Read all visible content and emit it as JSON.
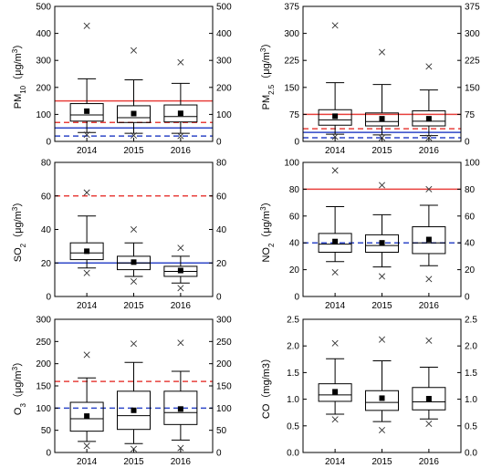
{
  "chart_data": [
    {
      "type": "box",
      "ylabel": "PM10（μg/m3）",
      "ylim": [
        0,
        500
      ],
      "yticks": [
        0,
        100,
        200,
        300,
        400,
        500
      ],
      "categories": [
        "2014",
        "2015",
        "2016"
      ],
      "boxes": [
        {
          "whisker_low": 33,
          "q1": 75,
          "median": 98,
          "q3": 140,
          "whisker_high": 232,
          "mean": 112,
          "outliers": [
            25,
            428
          ]
        },
        {
          "whisker_low": 30,
          "q1": 70,
          "median": 88,
          "q3": 132,
          "whisker_high": 228,
          "mean": 103,
          "outliers": [
            22,
            337
          ]
        },
        {
          "whisker_low": 30,
          "q1": 72,
          "median": 92,
          "q3": 135,
          "whisker_high": 215,
          "mean": 104,
          "outliers": [
            20,
            293
          ]
        }
      ],
      "reference_lines": [
        {
          "value": 150,
          "style": "solid",
          "color": "#e8413d"
        },
        {
          "value": 70,
          "style": "dashed",
          "color": "#e8413d"
        },
        {
          "value": 50,
          "style": "solid",
          "color": "#2f47c8"
        },
        {
          "value": 20,
          "style": "dashed",
          "color": "#2f47c8"
        }
      ]
    },
    {
      "type": "box",
      "ylabel": "PM2.5（μg/m3）",
      "ylim": [
        0,
        375
      ],
      "yticks": [
        0,
        75,
        150,
        225,
        300,
        375
      ],
      "categories": [
        "2014",
        "2015",
        "2016"
      ],
      "boxes": [
        {
          "whisker_low": 20,
          "q1": 45,
          "median": 60,
          "q3": 88,
          "whisker_high": 163,
          "mean": 70,
          "outliers": [
            13,
            322
          ]
        },
        {
          "whisker_low": 18,
          "q1": 43,
          "median": 55,
          "q3": 79,
          "whisker_high": 158,
          "mean": 63,
          "outliers": [
            10,
            248
          ]
        },
        {
          "whisker_low": 16,
          "q1": 43,
          "median": 56,
          "q3": 85,
          "whisker_high": 143,
          "mean": 63,
          "outliers": [
            10,
            208
          ]
        }
      ],
      "reference_lines": [
        {
          "value": 75,
          "style": "solid",
          "color": "#e8413d"
        },
        {
          "value": 35,
          "style": "dashed",
          "color": "#e8413d"
        },
        {
          "value": 25,
          "style": "solid",
          "color": "#2f47c8"
        },
        {
          "value": 10,
          "style": "dashed",
          "color": "#2f47c8"
        }
      ]
    },
    {
      "type": "box",
      "ylabel": "SO2（μg/m3）",
      "ylim": [
        0,
        80
      ],
      "yticks": [
        0,
        20,
        40,
        60,
        80
      ],
      "categories": [
        "2014",
        "2015",
        "2016"
      ],
      "boxes": [
        {
          "whisker_low": 17,
          "q1": 22,
          "median": 26,
          "q3": 32,
          "whisker_high": 48,
          "mean": 27,
          "outliers": [
            14,
            62
          ]
        },
        {
          "whisker_low": 12,
          "q1": 16,
          "median": 20,
          "q3": 24,
          "whisker_high": 32,
          "mean": 20.5,
          "outliers": [
            9,
            40
          ]
        },
        {
          "whisker_low": 8,
          "q1": 12,
          "median": 15,
          "q3": 18,
          "whisker_high": 24,
          "mean": 15.5,
          "outliers": [
            5,
            29
          ]
        }
      ],
      "reference_lines": [
        {
          "value": 60,
          "style": "dashed",
          "color": "#e8413d"
        },
        {
          "value": 20,
          "style": "solid",
          "color": "#2f47c8"
        }
      ]
    },
    {
      "type": "box",
      "ylabel": "NO2（μg/m3）",
      "ylim": [
        0,
        100
      ],
      "yticks": [
        0,
        20,
        40,
        60,
        80,
        100
      ],
      "categories": [
        "2014",
        "2015",
        "2016"
      ],
      "boxes": [
        {
          "whisker_low": 26,
          "q1": 33,
          "median": 39,
          "q3": 47,
          "whisker_high": 67,
          "mean": 41,
          "outliers": [
            18,
            94
          ]
        },
        {
          "whisker_low": 22,
          "q1": 33,
          "median": 38,
          "q3": 46,
          "whisker_high": 61,
          "mean": 40,
          "outliers": [
            15,
            83
          ]
        },
        {
          "whisker_low": 23,
          "q1": 32,
          "median": 40,
          "q3": 52,
          "whisker_high": 68,
          "mean": 42.5,
          "outliers": [
            13,
            80
          ]
        }
      ],
      "reference_lines": [
        {
          "value": 80,
          "style": "solid",
          "color": "#e8413d"
        },
        {
          "value": 40,
          "style": "dashed",
          "color": "#e8413d"
        },
        {
          "value": 40,
          "style": "dashed",
          "color": "#2f47c8"
        }
      ]
    },
    {
      "type": "box",
      "ylabel": "O3（μg/m3）",
      "ylim": [
        0,
        300
      ],
      "yticks": [
        0,
        50,
        100,
        150,
        200,
        250,
        300
      ],
      "categories": [
        "2014",
        "2015",
        "2016"
      ],
      "boxes": [
        {
          "whisker_low": 25,
          "q1": 48,
          "median": 76,
          "q3": 113,
          "whisker_high": 168,
          "mean": 82,
          "outliers": [
            15,
            220
          ]
        },
        {
          "whisker_low": 20,
          "q1": 52,
          "median": 83,
          "q3": 138,
          "whisker_high": 203,
          "mean": 95,
          "outliers": [
            8,
            245
          ]
        },
        {
          "whisker_low": 28,
          "q1": 63,
          "median": 90,
          "q3": 138,
          "whisker_high": 183,
          "mean": 98,
          "outliers": [
            10,
            247
          ]
        }
      ],
      "reference_lines": [
        {
          "value": 160,
          "style": "dashed",
          "color": "#e8413d"
        },
        {
          "value": 100,
          "style": "dashed",
          "color": "#2f47c8"
        }
      ]
    },
    {
      "type": "box",
      "ylabel": "CO（mg/m3）",
      "ylim": [
        0,
        2.5
      ],
      "yticks": [
        0.0,
        0.5,
        1.0,
        1.5,
        2.0,
        2.5
      ],
      "categories": [
        "2014",
        "2015",
        "2016"
      ],
      "boxes": [
        {
          "whisker_low": 0.72,
          "q1": 0.96,
          "median": 1.08,
          "q3": 1.29,
          "whisker_high": 1.76,
          "mean": 1.14,
          "outliers": [
            0.62,
            2.05
          ]
        },
        {
          "whisker_low": 0.58,
          "q1": 0.79,
          "median": 0.94,
          "q3": 1.16,
          "whisker_high": 1.72,
          "mean": 1.02,
          "outliers": [
            0.42,
            2.12
          ]
        },
        {
          "whisker_low": 0.63,
          "q1": 0.8,
          "median": 0.95,
          "q3": 1.22,
          "whisker_high": 1.6,
          "mean": 1.01,
          "outliers": [
            0.54,
            2.1
          ]
        }
      ],
      "reference_lines": []
    }
  ]
}
